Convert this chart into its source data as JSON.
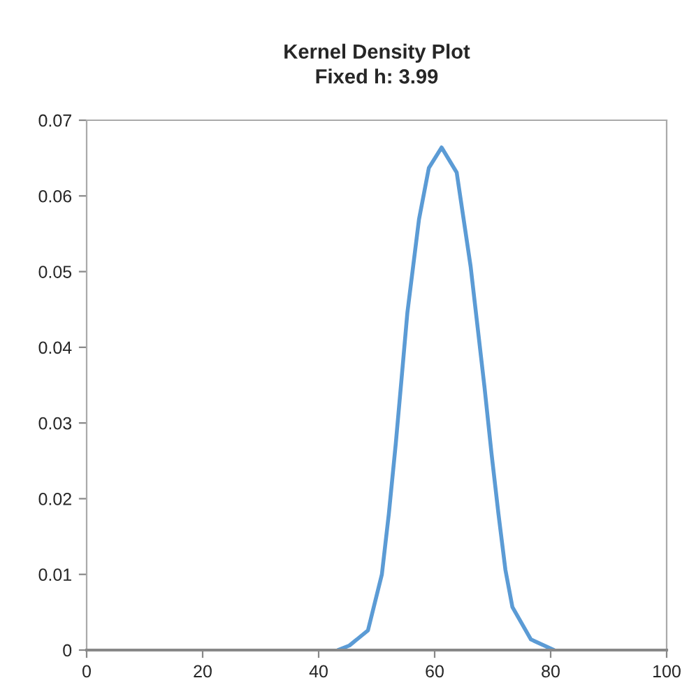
{
  "chart_data": {
    "type": "line",
    "title": "Kernel Density Plot\nFixed h: 3.99",
    "xlim": [
      0,
      100
    ],
    "xticks": [
      0,
      20,
      40,
      60,
      80,
      100
    ],
    "ylim": [
      0,
      0.07
    ],
    "yticks": [
      0,
      0.01,
      0.02,
      0.03,
      0.04,
      0.05,
      0.06,
      0.07
    ],
    "grid": false,
    "legend": false,
    "marker": "none",
    "line_style": "solid",
    "series": [
      {
        "color": "#5b9bd5",
        "x": [
          43.3,
          45.3,
          48.5,
          50.9,
          52.1,
          53.3,
          54.3,
          55.3,
          57.3,
          59.0,
          61.2,
          63.8,
          66.2,
          67.4,
          68.6,
          69.8,
          71.0,
          72.2,
          73.4,
          76.6,
          80.6
        ],
        "values": [
          0,
          0.0006,
          0.0026,
          0.01,
          0.018,
          0.0273,
          0.0359,
          0.0446,
          0.0569,
          0.0637,
          0.0664,
          0.0631,
          0.0507,
          0.0427,
          0.0347,
          0.026,
          0.018,
          0.0106,
          0.0057,
          0.0014,
          0
        ]
      }
    ]
  }
}
